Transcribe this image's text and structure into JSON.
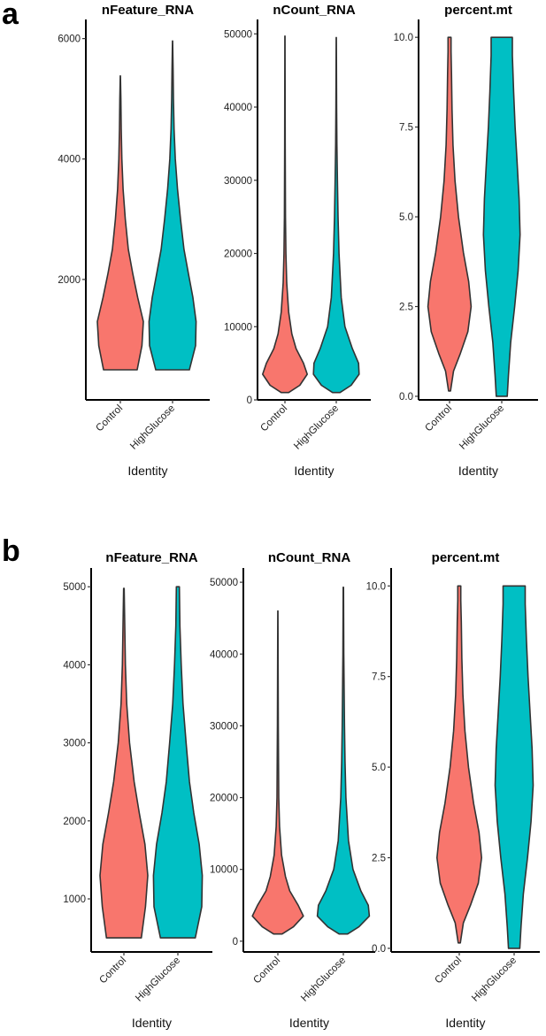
{
  "panels": [
    {
      "label": "a"
    },
    {
      "label": "b"
    }
  ],
  "colors": {
    "Control": "#F8766D",
    "HighGlucose": "#00BFC4",
    "outline": "#333333",
    "axis": "#000000"
  },
  "chart_data": [
    {
      "panel": "a",
      "type": "violin",
      "title": "nFeature_RNA",
      "xlabel": "Identity",
      "ylabel": "",
      "categories": [
        "Control",
        "HighGlucose"
      ],
      "ylim": [
        0,
        6200
      ],
      "yticks": [
        2000,
        4000,
        6000
      ],
      "ytick_labels": [
        "2000",
        "4000",
        "6000"
      ],
      "series": [
        {
          "name": "Control",
          "min": 500,
          "max": 5380,
          "density": [
            [
              500,
              0.68
            ],
            [
              900,
              0.87
            ],
            [
              1300,
              0.93
            ],
            [
              1700,
              0.7
            ],
            [
              2100,
              0.5
            ],
            [
              2500,
              0.32
            ],
            [
              3000,
              0.2
            ],
            [
              3500,
              0.11
            ],
            [
              4000,
              0.06
            ],
            [
              4500,
              0.035
            ],
            [
              5000,
              0.02
            ],
            [
              5380,
              0.005
            ]
          ]
        },
        {
          "name": "HighGlucose",
          "min": 500,
          "max": 5960,
          "density": [
            [
              500,
              0.68
            ],
            [
              900,
              0.93
            ],
            [
              1300,
              0.95
            ],
            [
              1700,
              0.82
            ],
            [
              2100,
              0.64
            ],
            [
              2500,
              0.46
            ],
            [
              3000,
              0.32
            ],
            [
              3500,
              0.2
            ],
            [
              4000,
              0.11
            ],
            [
              4500,
              0.06
            ],
            [
              5000,
              0.035
            ],
            [
              5500,
              0.02
            ],
            [
              5960,
              0.005
            ]
          ]
        }
      ]
    },
    {
      "panel": "a",
      "type": "violin",
      "title": "nCount_RNA",
      "xlabel": "Identity",
      "ylabel": "",
      "categories": [
        "Control",
        "HighGlucose"
      ],
      "ylim": [
        0,
        51000
      ],
      "yticks": [
        0,
        10000,
        20000,
        30000,
        40000,
        50000
      ],
      "ytick_labels": [
        "0",
        "10000",
        "20000",
        "30000",
        "40000",
        "50000"
      ],
      "series": [
        {
          "name": "Control",
          "min": 1000,
          "max": 49700,
          "density": [
            [
              1000,
              0.15
            ],
            [
              2000,
              0.6
            ],
            [
              3500,
              0.9
            ],
            [
              5000,
              0.75
            ],
            [
              7000,
              0.45
            ],
            [
              9000,
              0.28
            ],
            [
              12000,
              0.15
            ],
            [
              16000,
              0.07
            ],
            [
              20000,
              0.04
            ],
            [
              25000,
              0.02
            ],
            [
              35000,
              0.01
            ],
            [
              49700,
              0.004
            ]
          ]
        },
        {
          "name": "HighGlucose",
          "min": 1000,
          "max": 49500,
          "density": [
            [
              1000,
              0.15
            ],
            [
              2000,
              0.6
            ],
            [
              3500,
              0.92
            ],
            [
              5000,
              0.9
            ],
            [
              7000,
              0.65
            ],
            [
              10000,
              0.35
            ],
            [
              14000,
              0.2
            ],
            [
              20000,
              0.11
            ],
            [
              25000,
              0.07
            ],
            [
              30000,
              0.045
            ],
            [
              35000,
              0.025
            ],
            [
              40000,
              0.015
            ],
            [
              49500,
              0.005
            ]
          ]
        }
      ]
    },
    {
      "panel": "a",
      "type": "violin",
      "title": "percent.mt",
      "xlabel": "Identity",
      "ylabel": "",
      "categories": [
        "Control",
        "HighGlucose"
      ],
      "ylim": [
        -0.1,
        10.3
      ],
      "yticks": [
        0,
        2.5,
        5,
        7.5,
        10
      ],
      "ytick_labels": [
        "0.0",
        "2.5",
        "5.0",
        "7.5",
        "10.0"
      ],
      "series": [
        {
          "name": "Control",
          "min": 0.15,
          "max": 10.0,
          "density": [
            [
              0.15,
              0.04
            ],
            [
              0.7,
              0.16
            ],
            [
              1.2,
              0.44
            ],
            [
              1.8,
              0.74
            ],
            [
              2.5,
              0.87
            ],
            [
              3.2,
              0.77
            ],
            [
              4.0,
              0.56
            ],
            [
              5.0,
              0.36
            ],
            [
              6.0,
              0.22
            ],
            [
              7.0,
              0.14
            ],
            [
              8.0,
              0.1
            ],
            [
              9.0,
              0.08
            ],
            [
              9.6,
              0.06
            ],
            [
              10.0,
              0.06
            ]
          ]
        },
        {
          "name": "HighGlucose",
          "min": 0.0,
          "max": 10.0,
          "density": [
            [
              0.0,
              0.22
            ],
            [
              0.6,
              0.27
            ],
            [
              1.5,
              0.36
            ],
            [
              2.5,
              0.52
            ],
            [
              3.5,
              0.66
            ],
            [
              4.5,
              0.74
            ],
            [
              5.5,
              0.7
            ],
            [
              6.5,
              0.62
            ],
            [
              7.5,
              0.54
            ],
            [
              8.5,
              0.48
            ],
            [
              9.5,
              0.43
            ],
            [
              10.0,
              0.43
            ]
          ]
        }
      ]
    },
    {
      "panel": "b",
      "type": "violin",
      "title": "nFeature_RNA",
      "xlabel": "Identity",
      "ylabel": "",
      "categories": [
        "Control",
        "HighGlucose"
      ],
      "ylim": [
        320,
        5150
      ],
      "yticks": [
        1000,
        2000,
        3000,
        4000,
        5000
      ],
      "ytick_labels": [
        "1000",
        "2000",
        "3000",
        "4000",
        "5000"
      ],
      "series": [
        {
          "name": "Control",
          "min": 500,
          "max": 4980,
          "density": [
            [
              500,
              0.68
            ],
            [
              900,
              0.84
            ],
            [
              1300,
              0.93
            ],
            [
              1700,
              0.82
            ],
            [
              2100,
              0.6
            ],
            [
              2500,
              0.4
            ],
            [
              3000,
              0.22
            ],
            [
              3500,
              0.11
            ],
            [
              4000,
              0.06
            ],
            [
              4500,
              0.035
            ],
            [
              4980,
              0.01
            ]
          ]
        },
        {
          "name": "HighGlucose",
          "min": 500,
          "max": 5000,
          "density": [
            [
              500,
              0.68
            ],
            [
              900,
              0.93
            ],
            [
              1300,
              0.95
            ],
            [
              1700,
              0.83
            ],
            [
              2100,
              0.62
            ],
            [
              2500,
              0.45
            ],
            [
              3000,
              0.32
            ],
            [
              3500,
              0.2
            ],
            [
              4000,
              0.13
            ],
            [
              4500,
              0.08
            ],
            [
              5000,
              0.06
            ]
          ]
        }
      ]
    },
    {
      "panel": "b",
      "type": "violin",
      "title": "nCount_RNA",
      "xlabel": "Identity",
      "ylabel": "",
      "categories": [
        "Control",
        "HighGlucose"
      ],
      "ylim": [
        -1500,
        51000
      ],
      "yticks": [
        0,
        10000,
        20000,
        30000,
        40000,
        50000
      ],
      "ytick_labels": [
        "0",
        "10000",
        "20000",
        "30000",
        "40000",
        "50000"
      ],
      "series": [
        {
          "name": "Control",
          "min": 1000,
          "max": 46000,
          "density": [
            [
              1000,
              0.15
            ],
            [
              2000,
              0.55
            ],
            [
              3500,
              0.9
            ],
            [
              5000,
              0.72
            ],
            [
              7000,
              0.42
            ],
            [
              9000,
              0.27
            ],
            [
              12000,
              0.13
            ],
            [
              16000,
              0.06
            ],
            [
              20000,
              0.03
            ],
            [
              30000,
              0.015
            ],
            [
              46000,
              0.004
            ]
          ]
        },
        {
          "name": "HighGlucose",
          "min": 1000,
          "max": 49300,
          "density": [
            [
              1000,
              0.15
            ],
            [
              2000,
              0.55
            ],
            [
              3500,
              0.92
            ],
            [
              5000,
              0.88
            ],
            [
              7000,
              0.62
            ],
            [
              10000,
              0.34
            ],
            [
              14000,
              0.18
            ],
            [
              20000,
              0.09
            ],
            [
              25000,
              0.06
            ],
            [
              30000,
              0.04
            ],
            [
              40000,
              0.015
            ],
            [
              49300,
              0.005
            ]
          ]
        }
      ]
    },
    {
      "panel": "b",
      "type": "violin",
      "title": "percent.mt",
      "xlabel": "Identity",
      "ylabel": "",
      "categories": [
        "Control",
        "HighGlucose"
      ],
      "ylim": [
        -0.1,
        10.3
      ],
      "yticks": [
        0,
        2.5,
        5,
        7.5,
        10
      ],
      "ytick_labels": [
        "0.0",
        "2.5",
        "5.0",
        "7.5",
        "10.0"
      ],
      "series": [
        {
          "name": "Control",
          "min": 0.15,
          "max": 10.0,
          "density": [
            [
              0.15,
              0.04
            ],
            [
              0.7,
              0.16
            ],
            [
              1.2,
              0.44
            ],
            [
              1.8,
              0.74
            ],
            [
              2.5,
              0.87
            ],
            [
              3.2,
              0.77
            ],
            [
              4.0,
              0.56
            ],
            [
              5.0,
              0.36
            ],
            [
              6.0,
              0.22
            ],
            [
              7.0,
              0.14
            ],
            [
              8.0,
              0.1
            ],
            [
              9.0,
              0.08
            ],
            [
              9.6,
              0.06
            ],
            [
              10.0,
              0.06
            ]
          ]
        },
        {
          "name": "HighGlucose",
          "min": 0.0,
          "max": 10.0,
          "density": [
            [
              0.0,
              0.22
            ],
            [
              0.6,
              0.27
            ],
            [
              1.5,
              0.36
            ],
            [
              2.5,
              0.52
            ],
            [
              3.5,
              0.66
            ],
            [
              4.5,
              0.74
            ],
            [
              5.5,
              0.7
            ],
            [
              6.5,
              0.62
            ],
            [
              7.5,
              0.54
            ],
            [
              8.5,
              0.48
            ],
            [
              9.5,
              0.43
            ],
            [
              10.0,
              0.43
            ]
          ]
        }
      ]
    }
  ]
}
